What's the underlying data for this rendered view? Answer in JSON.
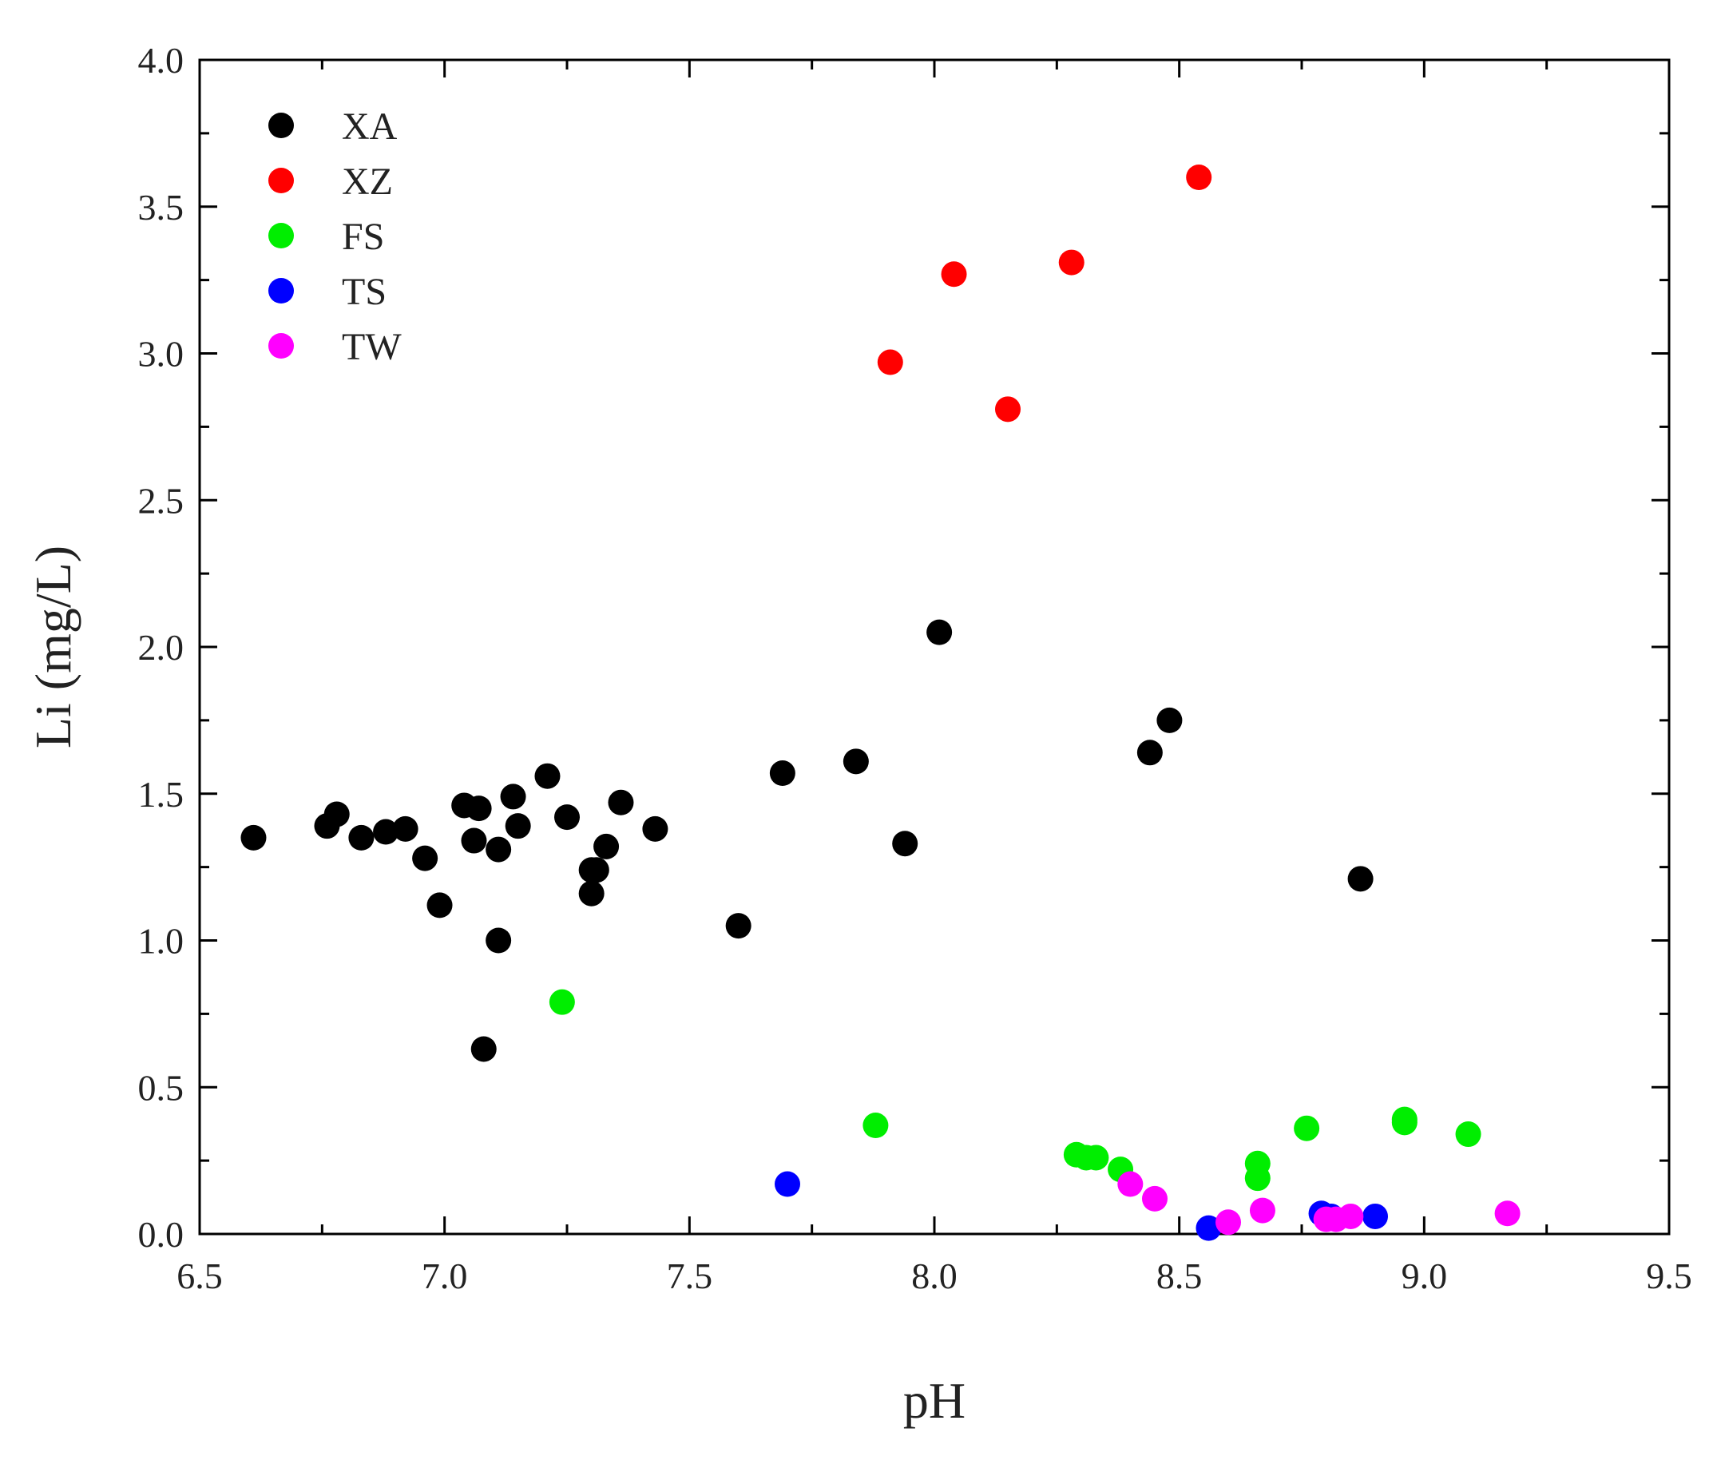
{
  "chart_data": {
    "type": "scatter",
    "xlabel": "pH",
    "ylabel": "Li (mg/L)",
    "xlim": [
      6.5,
      9.5
    ],
    "ylim": [
      0.0,
      4.0
    ],
    "x_ticks": [
      "6.5",
      "7.0",
      "7.5",
      "8.0",
      "8.5",
      "9.0",
      "9.5"
    ],
    "y_ticks": [
      "0.0",
      "0.5",
      "1.0",
      "1.5",
      "2.0",
      "2.5",
      "3.0",
      "3.5",
      "4.0"
    ],
    "grid": false,
    "legend_position": "top-left",
    "series": [
      {
        "name": "XA",
        "color": "#000000",
        "points": [
          [
            6.61,
            1.35
          ],
          [
            6.76,
            1.39
          ],
          [
            6.78,
            1.43
          ],
          [
            6.83,
            1.35
          ],
          [
            6.88,
            1.37
          ],
          [
            6.92,
            1.38
          ],
          [
            6.96,
            1.28
          ],
          [
            6.99,
            1.12
          ],
          [
            7.04,
            1.46
          ],
          [
            7.06,
            1.34
          ],
          [
            7.07,
            1.45
          ],
          [
            7.08,
            0.63
          ],
          [
            7.11,
            1.0
          ],
          [
            7.11,
            1.31
          ],
          [
            7.14,
            1.49
          ],
          [
            7.15,
            1.39
          ],
          [
            7.21,
            1.56
          ],
          [
            7.25,
            1.42
          ],
          [
            7.3,
            1.16
          ],
          [
            7.3,
            1.24
          ],
          [
            7.31,
            1.24
          ],
          [
            7.33,
            1.32
          ],
          [
            7.36,
            1.47
          ],
          [
            7.43,
            1.38
          ],
          [
            7.6,
            1.05
          ],
          [
            7.69,
            1.57
          ],
          [
            7.84,
            1.61
          ],
          [
            7.94,
            1.33
          ],
          [
            8.01,
            2.05
          ],
          [
            8.44,
            1.64
          ],
          [
            8.48,
            1.75
          ],
          [
            8.87,
            1.21
          ]
        ]
      },
      {
        "name": "XZ",
        "color": "#ff0000",
        "points": [
          [
            7.91,
            2.97
          ],
          [
            8.04,
            3.27
          ],
          [
            8.15,
            2.81
          ],
          [
            8.28,
            3.31
          ],
          [
            8.54,
            3.6
          ]
        ]
      },
      {
        "name": "FS",
        "color": "#00ee00",
        "points": [
          [
            7.24,
            0.79
          ],
          [
            7.88,
            0.37
          ],
          [
            8.29,
            0.27
          ],
          [
            8.31,
            0.26
          ],
          [
            8.33,
            0.26
          ],
          [
            8.38,
            0.22
          ],
          [
            8.66,
            0.24
          ],
          [
            8.66,
            0.19
          ],
          [
            8.76,
            0.36
          ],
          [
            8.96,
            0.39
          ],
          [
            8.96,
            0.38
          ],
          [
            9.09,
            0.34
          ]
        ]
      },
      {
        "name": "TS",
        "color": "#0000ff",
        "points": [
          [
            7.7,
            0.17
          ],
          [
            8.56,
            0.02
          ],
          [
            8.79,
            0.07
          ],
          [
            8.81,
            0.06
          ],
          [
            8.9,
            0.06
          ]
        ]
      },
      {
        "name": "TW",
        "color": "#ff00ff",
        "points": [
          [
            8.4,
            0.17
          ],
          [
            8.45,
            0.12
          ],
          [
            8.6,
            0.04
          ],
          [
            8.67,
            0.08
          ],
          [
            8.8,
            0.05
          ],
          [
            8.82,
            0.05
          ],
          [
            8.85,
            0.06
          ],
          [
            9.17,
            0.07
          ]
        ]
      }
    ]
  }
}
